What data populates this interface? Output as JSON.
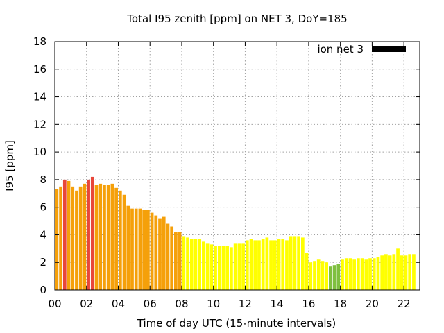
{
  "chart_data": {
    "type": "bar",
    "title": "Total I95 zenith [ppm] on NET 3, DoY=185",
    "xlabel": "Time of day UTC (15-minute intervals)",
    "ylabel": "I95 [ppm]",
    "xlim": [
      0,
      23
    ],
    "ylim": [
      0,
      18
    ],
    "x_ticks": [
      {
        "value": 0,
        "label": "00"
      },
      {
        "value": 2,
        "label": "02"
      },
      {
        "value": 4,
        "label": "04"
      },
      {
        "value": 6,
        "label": "06"
      },
      {
        "value": 8,
        "label": "08"
      },
      {
        "value": 10,
        "label": "10"
      },
      {
        "value": 12,
        "label": "12"
      },
      {
        "value": 14,
        "label": "14"
      },
      {
        "value": 16,
        "label": "16"
      },
      {
        "value": 18,
        "label": "18"
      },
      {
        "value": 20,
        "label": "20"
      },
      {
        "value": 22,
        "label": "22"
      }
    ],
    "y_ticks": [
      0,
      2,
      4,
      6,
      8,
      10,
      12,
      14,
      16,
      18
    ],
    "grid": true,
    "legend": {
      "position": "top-right",
      "label": "ion net 3",
      "color": "#000000"
    },
    "bar_interval_hours": 0.25,
    "color_scale": {
      "red": "#e8473a",
      "orange": "#f5a00a",
      "yellow": "#ffff00",
      "green": "#7fbf3f"
    },
    "series": [
      {
        "values": [
          7.3,
          7.5,
          8.0,
          7.9,
          7.5,
          7.2,
          7.5,
          7.7,
          8.0,
          8.2,
          7.6,
          7.7,
          7.6,
          7.6,
          7.7,
          7.4,
          7.2,
          6.9,
          6.1,
          5.9,
          5.9,
          5.9,
          5.8,
          5.8,
          5.6,
          5.4,
          5.2,
          5.3,
          4.8,
          4.6,
          4.2,
          4.2,
          3.9,
          3.8,
          3.7,
          3.7,
          3.7,
          3.5,
          3.4,
          3.3,
          3.2,
          3.2,
          3.2,
          3.2,
          3.1,
          3.4,
          3.4,
          3.4,
          3.6,
          3.7,
          3.6,
          3.6,
          3.7,
          3.8,
          3.6,
          3.6,
          3.7,
          3.7,
          3.6,
          3.9,
          3.9,
          3.9,
          3.8,
          2.7,
          2.0,
          2.1,
          2.2,
          2.1,
          2.0,
          1.7,
          1.8,
          1.9,
          2.2,
          2.3,
          2.3,
          2.2,
          2.3,
          2.3,
          2.2,
          2.3,
          2.3,
          2.4,
          2.5,
          2.6,
          2.5,
          2.6,
          3.0,
          2.5,
          2.5,
          2.6,
          2.6
        ],
        "colors": [
          "orange",
          "orange",
          "red",
          "orange",
          "orange",
          "orange",
          "orange",
          "orange",
          "red",
          "red",
          "orange",
          "orange",
          "orange",
          "orange",
          "orange",
          "orange",
          "orange",
          "orange",
          "orange",
          "orange",
          "orange",
          "orange",
          "orange",
          "orange",
          "orange",
          "orange",
          "orange",
          "orange",
          "orange",
          "orange",
          "orange",
          "orange",
          "yellow",
          "yellow",
          "yellow",
          "yellow",
          "yellow",
          "yellow",
          "yellow",
          "yellow",
          "yellow",
          "yellow",
          "yellow",
          "yellow",
          "yellow",
          "yellow",
          "yellow",
          "yellow",
          "yellow",
          "yellow",
          "yellow",
          "yellow",
          "yellow",
          "yellow",
          "yellow",
          "yellow",
          "yellow",
          "yellow",
          "yellow",
          "yellow",
          "yellow",
          "yellow",
          "yellow",
          "yellow",
          "yellow",
          "yellow",
          "yellow",
          "yellow",
          "yellow",
          "green",
          "green",
          "green",
          "yellow",
          "yellow",
          "yellow",
          "yellow",
          "yellow",
          "yellow",
          "yellow",
          "yellow",
          "yellow",
          "yellow",
          "yellow",
          "yellow",
          "yellow",
          "yellow",
          "yellow",
          "yellow",
          "yellow",
          "yellow",
          "yellow"
        ]
      }
    ]
  }
}
